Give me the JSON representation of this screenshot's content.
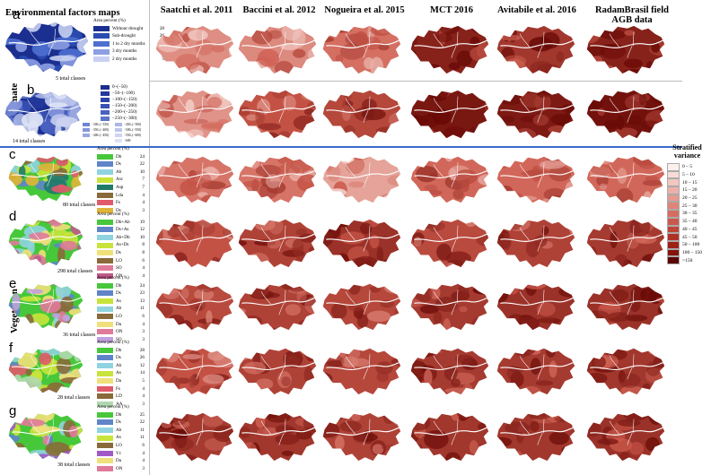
{
  "header": {
    "factors_title": "Environmental factors maps",
    "columns": [
      "Saatchi et al. 2011",
      "Baccini et al. 2012",
      "Nogueira et al. 2015",
      "MCT 2016",
      "Avitabile et al.  2016",
      "RadamBrasil field AGB data"
    ]
  },
  "groups": {
    "climate": "Climate",
    "vegetation": "Vegetation"
  },
  "colors": {
    "separator_blue": "#3a6ac8"
  },
  "rows": [
    {
      "letter": "a",
      "classes": "5 total classes",
      "legend_title": "Area percent (%)",
      "items": [
        {
          "name": "Without drought",
          "value": "28",
          "color": "#1a2f8f"
        },
        {
          "name": "Sub-drought",
          "value": "26",
          "color": "#2b4cb0"
        },
        {
          "name": "1 to 2 dry months",
          "value": "14",
          "color": "#4e6fd0"
        },
        {
          "name": "3 dry months",
          "value": "12",
          "color": "#8c9fe3"
        },
        {
          "name": "2 dry months",
          "value": "5",
          "color": "#c9d1f2"
        }
      ]
    },
    {
      "letter": "b",
      "classes": "14 total classes",
      "items": [
        {
          "name": "0–(−50)",
          "color": "#1a2f8f"
        },
        {
          "name": "−50–(−100)",
          "color": "#23389a"
        },
        {
          "name": "−100–(−150)",
          "color": "#2c43a6"
        },
        {
          "name": "−150–(−200)",
          "color": "#3851b3"
        },
        {
          "name": "−200–(−250)",
          "color": "#4a62c0"
        },
        {
          "name": "−250–(−300)",
          "color": "#5c74cb"
        },
        {
          "name": "−300–(−350)",
          "color": "#7185d3"
        },
        {
          "name": "−350–(−400)",
          "color": "#8596db"
        },
        {
          "name": "−400–(−450)",
          "color": "#98a7e1"
        },
        {
          "name": "−450–(−500)",
          "color": "#aab6e6"
        },
        {
          "name": "−500–(−550)",
          "color": "#bcc5eb"
        },
        {
          "name": "−550–(−600)",
          "color": "#cdd4f0"
        },
        {
          "name": "−600",
          "color": "#dde2f5"
        }
      ]
    },
    {
      "letter": "c",
      "classes": "80 total classes",
      "legend_title": "Area percent (%)",
      "items": [
        {
          "name": "Db",
          "value": "24",
          "color": "#46c83a"
        },
        {
          "name": "Ds",
          "value": "22",
          "color": "#5f84c8"
        },
        {
          "name": "Ab",
          "value": "10",
          "color": "#8fd3e0"
        },
        {
          "name": "Asc",
          "value": "7",
          "color": "#c8e43a"
        },
        {
          "name": "Asp",
          "value": "7",
          "color": "#1f7a6a"
        },
        {
          "name": "Lda",
          "value": "4",
          "color": "#8a6a3a"
        },
        {
          "name": "Fs",
          "value": "4",
          "color": "#e05a6a"
        },
        {
          "name": "Ds",
          "value": "3",
          "color": "#e0b43a"
        }
      ]
    },
    {
      "letter": "d",
      "classes": "298 total classes",
      "legend_title": "Area percent (%)",
      "items": [
        {
          "name": "Db+Ab",
          "value": "19",
          "color": "#46c83a"
        },
        {
          "name": "Ds+As",
          "value": "12",
          "color": "#5f84c8"
        },
        {
          "name": "Ab+Db",
          "value": "10",
          "color": "#8fd3e0"
        },
        {
          "name": "As+Ds",
          "value": "8",
          "color": "#c8e43a"
        },
        {
          "name": "Ds",
          "value": "8",
          "color": "#f0e07a"
        },
        {
          "name": "LO",
          "value": "6",
          "color": "#8a6a3a"
        },
        {
          "name": "SO",
          "value": "4",
          "color": "#e07a9a"
        },
        {
          "name": "ON",
          "value": "4",
          "color": "#c05a8a"
        }
      ]
    },
    {
      "letter": "e",
      "classes": "36 total classes",
      "legend_title": "Area percent (%)",
      "items": [
        {
          "name": "Db",
          "value": "24",
          "color": "#46c83a"
        },
        {
          "name": "Ds",
          "value": "23",
          "color": "#5f84c8"
        },
        {
          "name": "As",
          "value": "13",
          "color": "#c8e43a"
        },
        {
          "name": "Ab",
          "value": "11",
          "color": "#8fd3e0"
        },
        {
          "name": "LO",
          "value": "6",
          "color": "#8a6a3a"
        },
        {
          "name": "Da",
          "value": "4",
          "color": "#f0e07a"
        },
        {
          "name": "ON",
          "value": "3",
          "color": "#e07a9a"
        },
        {
          "name": "SO",
          "value": "3",
          "color": "#c0a0e0"
        }
      ]
    },
    {
      "letter": "f",
      "classes": "28 total classes",
      "legend_title": "Area percent (%)",
      "items": [
        {
          "name": "Db",
          "value": "28",
          "color": "#46c83a"
        },
        {
          "name": "Ds",
          "value": "26",
          "color": "#5f84c8"
        },
        {
          "name": "Ab",
          "value": "12",
          "color": "#8fd3e0"
        },
        {
          "name": "As",
          "value": "14",
          "color": "#c8e43a"
        },
        {
          "name": "Da",
          "value": "5",
          "color": "#f0e07a"
        },
        {
          "name": "Fs",
          "value": "4",
          "color": "#e05a6a"
        },
        {
          "name": "LD",
          "value": "4",
          "color": "#8a6a3a"
        },
        {
          "name": "AA",
          "value": "3",
          "color": "#b0d8b0"
        }
      ]
    },
    {
      "letter": "g",
      "classes": "38 total classes",
      "legend_title": "Area percent (%)",
      "items": [
        {
          "name": "Db",
          "value": "25",
          "color": "#46c83a"
        },
        {
          "name": "Ds",
          "value": "22",
          "color": "#5f84c8"
        },
        {
          "name": "Ab",
          "value": "11",
          "color": "#8fd3e0"
        },
        {
          "name": "As",
          "value": "11",
          "color": "#c8e43a"
        },
        {
          "name": "LO",
          "value": "6",
          "color": "#8a6a3a"
        },
        {
          "name": "Vc",
          "value": "4",
          "color": "#a05ac8"
        },
        {
          "name": "Da",
          "value": "4",
          "color": "#f0e07a"
        },
        {
          "name": "ON",
          "value": "3",
          "color": "#e07a9a"
        }
      ]
    }
  ],
  "stratified": {
    "title": "Stratified variance",
    "classes": [
      {
        "label": "0 – 5",
        "color": "#fdf0ee"
      },
      {
        "label": "5 – 10",
        "color": "#f8dcd8"
      },
      {
        "label": "10 – 15",
        "color": "#f3c6c0"
      },
      {
        "label": "15 – 20",
        "color": "#edb0a8"
      },
      {
        "label": "20 – 25",
        "color": "#e69a90"
      },
      {
        "label": "25 – 30",
        "color": "#de8478"
      },
      {
        "label": "30 – 35",
        "color": "#d56e62"
      },
      {
        "label": "35 – 40",
        "color": "#cb584c"
      },
      {
        "label": "40 – 45",
        "color": "#bf4438"
      },
      {
        "label": "45 – 50",
        "color": "#b03226"
      },
      {
        "label": "50 – 100",
        "color": "#9c2218"
      },
      {
        "label": "100 – 150",
        "color": "#84150e"
      },
      {
        "label": ">150",
        "color": "#5a0604"
      }
    ]
  },
  "map_intensity": [
    [
      0.3,
      0.32,
      0.42,
      0.85,
      0.72,
      0.85
    ],
    [
      0.28,
      0.55,
      0.62,
      0.92,
      0.9,
      0.95
    ],
    [
      0.4,
      0.4,
      0.22,
      0.45,
      0.45,
      0.45
    ],
    [
      0.55,
      0.65,
      0.75,
      0.6,
      0.65,
      0.7
    ],
    [
      0.6,
      0.65,
      0.62,
      0.7,
      0.75,
      0.75
    ],
    [
      0.55,
      0.65,
      0.62,
      0.7,
      0.7,
      0.72
    ],
    [
      0.7,
      0.72,
      0.65,
      0.72,
      0.72,
      0.75
    ]
  ]
}
